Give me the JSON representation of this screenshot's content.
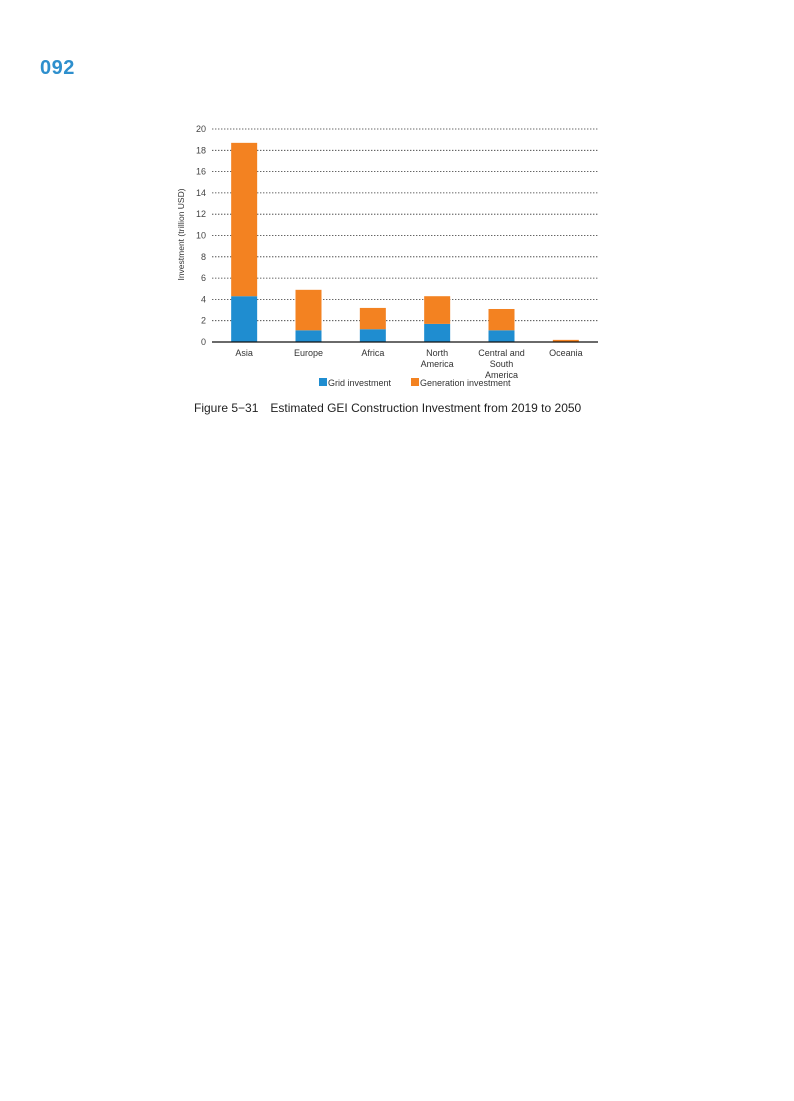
{
  "page": {
    "number": "092"
  },
  "figure": {
    "label": "Figure 5−31",
    "title": "Estimated GEI Construction Investment from 2019 to 2050"
  },
  "colors": {
    "grid": "#1f8dd0",
    "generation": "#f38221",
    "accent": "#2e8fcd"
  },
  "chart_data": {
    "type": "bar",
    "stacked": true,
    "categories": [
      [
        "Asia"
      ],
      [
        "Europe"
      ],
      [
        "Africa"
      ],
      [
        "North",
        "America"
      ],
      [
        "Central and",
        "South",
        "America"
      ],
      [
        "Oceania"
      ]
    ],
    "series": [
      {
        "name": "Grid investment",
        "color": "#1f8dd0",
        "values": [
          4.3,
          1.1,
          1.2,
          1.7,
          1.1,
          0.0
        ]
      },
      {
        "name": "Generation investment",
        "color": "#f38221",
        "values": [
          14.4,
          3.8,
          2.0,
          2.6,
          2.0,
          0.2
        ]
      }
    ],
    "ylabel": "Investment (trillion USD)",
    "xlabel": "",
    "ylim": [
      0,
      20
    ],
    "yticks": [
      0,
      2,
      4,
      6,
      8,
      10,
      12,
      14,
      16,
      18,
      20
    ],
    "grid": "dotted horizontal",
    "legend_position": "bottom"
  }
}
